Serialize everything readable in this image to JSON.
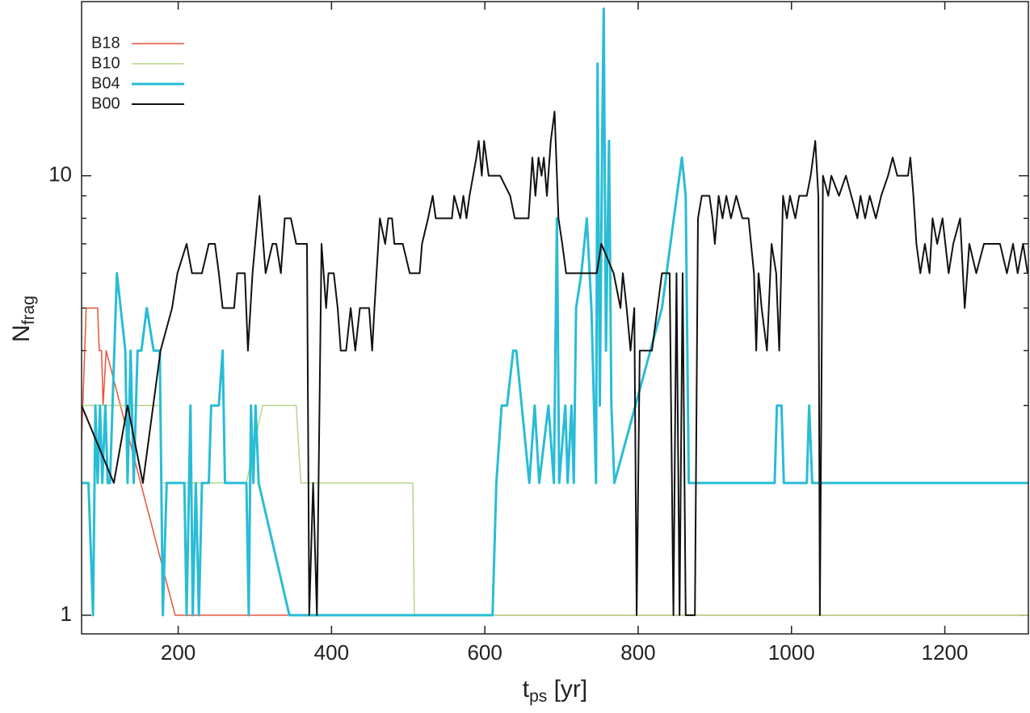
{
  "chart_data": {
    "type": "line",
    "xlabel": {
      "main": "t",
      "sub": "ps",
      "rest": " [yr]"
    },
    "ylabel": {
      "main": "N",
      "sub": "frag"
    },
    "xlim": [
      74,
      1309
    ],
    "xticks": [
      200,
      400,
      600,
      800,
      1000,
      1200
    ],
    "ylim": [
      0.907,
      24.9
    ],
    "yticks": [
      1,
      10
    ],
    "yminorticks": [
      2,
      3,
      4,
      5,
      6,
      7,
      8,
      9
    ],
    "log_y": true,
    "legend": "upper left",
    "series": [
      {
        "name": "B18",
        "color": "#e8513a",
        "width": 1.5,
        "x": [
          74,
          80,
          95,
          97,
          100,
          102,
          106,
          196,
          1308
        ],
        "values": [
          2.5,
          5,
          5,
          4,
          4,
          3,
          4,
          1,
          1
        ]
      },
      {
        "name": "B10",
        "color": "#b5d68a",
        "width": 1.5,
        "x": [
          74,
          176,
          178,
          289,
          310,
          354,
          360,
          506,
          508,
          1308
        ],
        "values": [
          3,
          3,
          2,
          2,
          3,
          3,
          2,
          2,
          1,
          1
        ]
      },
      {
        "name": "B04",
        "color": "#29bcd6",
        "width": 3,
        "x": [
          74,
          83,
          89,
          92,
          95,
          98,
          101,
          105,
          108,
          111,
          120,
          131,
          134,
          138,
          142,
          147,
          152,
          159,
          168,
          176,
          180,
          185,
          208,
          211,
          216,
          219,
          223,
          227,
          231,
          240,
          243,
          253,
          258,
          261,
          289,
          292,
          295,
          298,
          301,
          305,
          345,
          610,
          615,
          622,
          629,
          637,
          641,
          658,
          665,
          671,
          683,
          690,
          694,
          697,
          705,
          708,
          713,
          716,
          719,
          726,
          733,
          739,
          745,
          747,
          750,
          753,
          755,
          758,
          762,
          765,
          769,
          831,
          857,
          862,
          866,
          978,
          981,
          987,
          990,
          1020,
          1023,
          1027,
          1308
        ],
        "values": [
          2,
          2,
          1,
          3,
          2,
          3,
          2,
          3,
          2,
          2,
          6,
          4,
          2,
          4,
          2,
          4,
          4,
          5,
          4,
          4,
          1,
          2,
          2,
          1,
          3,
          1,
          2,
          1,
          2,
          2,
          3,
          3,
          4,
          2,
          2,
          1,
          3,
          2,
          3,
          2,
          1,
          1,
          2,
          3,
          3,
          4,
          4,
          2,
          3,
          2,
          3,
          2,
          8,
          2,
          3,
          2,
          3,
          2,
          5,
          6,
          8,
          5,
          2,
          18,
          3,
          12,
          24,
          4,
          12,
          3,
          2,
          5,
          11,
          9,
          2,
          2,
          3,
          3,
          2,
          2,
          3,
          2,
          2
        ]
      },
      {
        "name": "B00",
        "color": "#111111",
        "width": 2,
        "x": [
          74,
          116,
          134,
          154,
          177,
          192,
          199,
          211,
          218,
          231,
          240,
          248,
          253,
          258,
          273,
          277,
          287,
          291,
          297,
          306,
          314,
          323,
          328,
          334,
          339,
          347,
          354,
          368,
          371,
          376,
          381,
          387,
          393,
          396,
          403,
          408,
          412,
          419,
          425,
          431,
          437,
          449,
          453,
          456,
          463,
          470,
          474,
          479,
          482,
          493,
          502,
          515,
          518,
          526,
          532,
          536,
          557,
          560,
          568,
          572,
          576,
          580,
          589,
          592,
          596,
          599,
          605,
          620,
          633,
          639,
          657,
          662,
          666,
          670,
          674,
          677,
          681,
          686,
          691,
          696,
          701,
          706,
          746,
          752,
          768,
          777,
          780,
          785,
          790,
          795,
          798,
          802,
          818,
          831,
          841,
          846,
          850,
          854,
          858,
          862,
          874,
          878,
          883,
          893,
          897,
          900,
          905,
          910,
          915,
          921,
          928,
          936,
          944,
          951,
          954,
          957,
          961,
          968,
          974,
          980,
          984,
          989,
          994,
          998,
          1005,
          1010,
          1020,
          1025,
          1031,
          1035,
          1037,
          1041,
          1048,
          1052,
          1062,
          1071,
          1078,
          1086,
          1090,
          1096,
          1102,
          1110,
          1117,
          1126,
          1132,
          1138,
          1152,
          1155,
          1159,
          1163,
          1168,
          1174,
          1180,
          1184,
          1190,
          1197,
          1205,
          1211,
          1220,
          1226,
          1232,
          1241,
          1251,
          1272,
          1281,
          1289,
          1295,
          1302,
          1308
        ],
        "values": [
          3,
          2,
          3,
          2,
          4,
          5,
          6,
          7,
          6,
          6,
          7,
          7,
          6,
          5,
          5,
          6,
          6,
          4,
          6,
          9,
          6,
          7,
          7,
          6,
          8,
          8,
          7,
          7,
          1,
          2,
          1,
          7,
          5,
          6,
          6,
          5,
          4,
          4,
          5,
          4,
          5,
          5,
          4,
          5,
          8,
          7,
          8,
          8,
          7,
          7,
          6,
          6,
          7,
          8,
          9,
          8,
          8,
          9,
          8,
          9,
          8,
          9,
          11,
          12,
          10,
          12,
          10,
          10,
          9,
          8,
          8,
          11,
          9,
          11,
          10,
          11,
          9,
          12,
          14,
          8,
          7,
          6,
          6,
          7,
          6,
          5,
          6,
          5,
          4,
          5,
          1,
          4,
          4,
          6,
          6,
          1,
          6,
          1,
          6,
          1,
          1,
          8,
          9,
          9,
          8,
          7,
          9,
          8,
          9,
          8,
          9,
          8,
          8,
          6,
          4,
          6,
          5,
          4,
          7,
          6,
          4,
          9,
          8,
          9,
          8,
          9,
          9,
          10,
          12,
          9,
          1,
          10,
          9,
          10,
          9,
          10,
          9,
          8,
          9,
          8,
          9,
          8,
          9,
          10,
          11,
          10,
          10,
          11,
          9,
          7,
          6,
          7,
          6,
          8,
          7,
          8,
          6,
          7,
          8,
          5,
          7,
          6,
          7,
          7,
          6,
          7,
          6,
          7,
          6
        ]
      }
    ]
  }
}
